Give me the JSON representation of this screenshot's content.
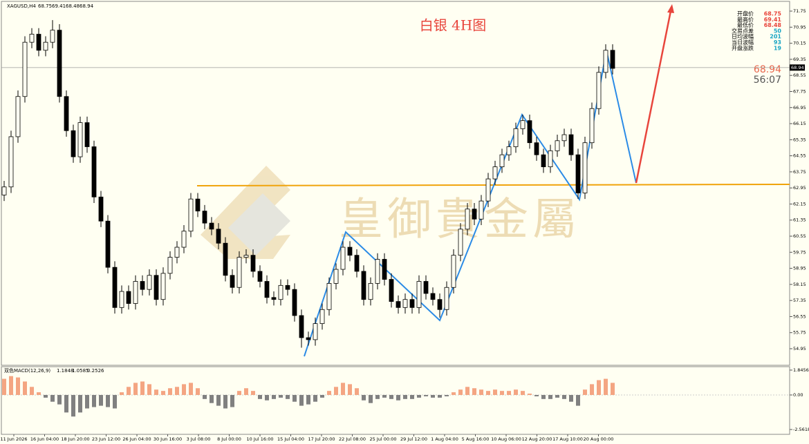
{
  "chart_data": {
    "type": "candlestick",
    "symbol": "XAGUSD,H4",
    "title": "白银 4H图",
    "watermark": "皇御貴金屬",
    "current_price": 68.94,
    "timer": "56:07",
    "info": [
      {
        "label": "开盘价",
        "value": 68.75
      },
      {
        "label": "最高价",
        "value": 69.41
      },
      {
        "label": "最低价",
        "value": 68.48
      },
      {
        "label": "交易点差",
        "value": 50
      },
      {
        "label": "日均波幅",
        "value": 201
      },
      {
        "label": "当日波幅",
        "value": 93
      },
      {
        "label": "开盘涨跌",
        "value": 19
      }
    ],
    "ylim": [
      54.16,
      72.13
    ],
    "yticks": [
      71.75,
      70.95,
      70.15,
      69.35,
      68.55,
      67.75,
      66.95,
      66.15,
      65.35,
      64.55,
      63.75,
      62.95,
      62.15,
      61.35,
      60.55,
      59.75,
      58.95,
      58.15,
      57.35,
      56.55,
      55.75,
      54.95
    ],
    "x_labels": [
      "11 Jun 2026",
      "16 Jun 04:00",
      "18 Jun 20:00",
      "23 Jun 12:00",
      "26 Jun 04:00",
      "30 Jun 16:00",
      "3 Jul 08:00",
      "8 Jul 00:00",
      "10 Jul 16:00",
      "15 Jul 04:00",
      "17 Jul 20:00",
      "22 Jul 08:00",
      "25 Jul 00:00",
      "29 Jul 12:00",
      "1 Aug 04:00",
      "5 Aug 16:00",
      "10 Aug 06:00",
      "12 Aug 20:00",
      "17 Aug 10:00",
      "20 Aug 00:00"
    ],
    "open": [
      62.6,
      63.0,
      65.5,
      67.5,
      70.2,
      70.6,
      69.8,
      70.2,
      70.8,
      67.5,
      65.8,
      64.5,
      66.2,
      65.0,
      62.5,
      61.3,
      59.0,
      57.0,
      57.8,
      57.2,
      58.3,
      57.9,
      58.6,
      57.4,
      58.7,
      59.5,
      60.0,
      60.8,
      62.4,
      61.8,
      61.2,
      60.9,
      60.2,
      58.6,
      58.0,
      59.5,
      59.6,
      58.8,
      58.3,
      57.5,
      57.4,
      58.1,
      57.9,
      56.6,
      55.5,
      55.4,
      56.2,
      56.9,
      58.2,
      58.9,
      60.0,
      59.6,
      58.8,
      57.4,
      58.2,
      59.4,
      58.4,
      57.3,
      57.0,
      57.4,
      57.0,
      58.3,
      57.7,
      57.4,
      56.9,
      58.0,
      59.6,
      60.9,
      61.9,
      61.4,
      62.3,
      63.4,
      64.0,
      64.6,
      65.0,
      65.9,
      66.3,
      65.2,
      64.6,
      64.0,
      64.8,
      65.3,
      65.6,
      64.6,
      62.7,
      65.2,
      66.9,
      68.7,
      69.8
    ],
    "high": [
      63.3,
      65.8,
      67.8,
      70.5,
      70.9,
      70.9,
      70.5,
      71.3,
      71.1,
      67.8,
      66.1,
      66.5,
      66.5,
      65.3,
      62.8,
      61.6,
      59.3,
      58.1,
      58.1,
      58.6,
      58.6,
      58.9,
      58.9,
      59.0,
      59.8,
      60.3,
      61.1,
      62.7,
      62.7,
      62.1,
      61.5,
      61.2,
      60.5,
      58.9,
      59.8,
      59.9,
      59.9,
      59.1,
      58.6,
      57.8,
      58.4,
      58.4,
      58.2,
      56.9,
      55.8,
      56.5,
      57.2,
      58.5,
      59.2,
      60.3,
      60.3,
      59.9,
      59.1,
      58.5,
      59.7,
      59.7,
      58.7,
      57.6,
      57.7,
      57.7,
      58.6,
      58.6,
      58.0,
      57.7,
      58.3,
      59.9,
      61.2,
      62.2,
      62.2,
      62.6,
      63.7,
      64.3,
      64.9,
      65.3,
      66.2,
      66.6,
      66.6,
      65.5,
      64.9,
      65.1,
      65.6,
      65.9,
      65.9,
      64.9,
      65.5,
      67.2,
      69.0,
      70.1,
      70.1
    ],
    "low": [
      62.3,
      62.7,
      65.2,
      67.2,
      69.9,
      69.5,
      69.5,
      69.9,
      67.2,
      65.5,
      64.2,
      64.2,
      64.7,
      62.2,
      61.0,
      58.7,
      56.7,
      56.7,
      56.9,
      56.9,
      57.6,
      57.6,
      57.1,
      57.1,
      58.4,
      59.2,
      59.7,
      60.5,
      61.5,
      60.9,
      60.6,
      59.9,
      58.3,
      57.7,
      57.7,
      59.2,
      58.5,
      58.0,
      57.2,
      57.1,
      57.1,
      57.6,
      56.3,
      55.0,
      55.1,
      55.1,
      55.9,
      56.6,
      57.9,
      58.6,
      59.3,
      58.5,
      57.1,
      57.1,
      57.9,
      58.1,
      57.0,
      56.7,
      56.7,
      56.7,
      56.7,
      57.4,
      57.1,
      56.5,
      56.6,
      57.7,
      59.3,
      60.6,
      61.1,
      61.1,
      62.0,
      63.1,
      63.7,
      64.3,
      64.7,
      65.6,
      64.9,
      64.3,
      63.7,
      63.7,
      64.5,
      65.0,
      64.3,
      62.4,
      62.4,
      64.9,
      66.6,
      68.4,
      68.6
    ],
    "close": [
      63.0,
      65.5,
      67.5,
      70.2,
      70.6,
      69.8,
      70.2,
      70.8,
      67.5,
      65.8,
      64.5,
      66.2,
      65.0,
      62.5,
      61.3,
      59.0,
      57.0,
      57.8,
      57.2,
      58.3,
      57.9,
      58.6,
      57.4,
      58.7,
      59.5,
      60.0,
      60.8,
      62.4,
      61.8,
      61.2,
      60.9,
      60.2,
      58.6,
      58.0,
      59.5,
      59.6,
      58.8,
      58.3,
      57.5,
      57.4,
      58.1,
      57.9,
      56.6,
      55.5,
      55.4,
      56.2,
      56.9,
      58.2,
      58.9,
      60.0,
      59.6,
      58.8,
      57.4,
      58.2,
      59.4,
      58.4,
      57.3,
      57.0,
      57.4,
      57.0,
      58.3,
      57.7,
      57.4,
      56.9,
      58.0,
      59.6,
      60.9,
      61.9,
      61.4,
      62.3,
      63.4,
      64.0,
      64.6,
      65.0,
      65.9,
      66.3,
      65.2,
      64.6,
      64.0,
      64.8,
      65.3,
      65.6,
      64.6,
      62.7,
      65.2,
      66.9,
      68.7,
      69.8,
      68.9
    ],
    "macd": {
      "label": "双色MACD(12,26,9)",
      "values_printed": [
        1.1848,
        1.0585,
        0.2526
      ],
      "ylim": [
        -2.87,
        2.1
      ],
      "yticks": [
        1.8456,
        {
          "value": 0,
          "label": "0.00"
        },
        -2.5618
      ],
      "histogram": [
        1.2,
        1.4,
        1.3,
        1.0,
        0.6,
        0.2,
        -0.2,
        -0.5,
        -0.7,
        -1.3,
        -1.6,
        -1.3,
        -1.0,
        -0.9,
        -0.8,
        -0.9,
        -1.0,
        0.2,
        0.6,
        0.9,
        1.0,
        0.8,
        0.4,
        0.3,
        0.5,
        0.6,
        0.8,
        0.9,
        0.5,
        -0.3,
        -0.6,
        -0.8,
        -1.0,
        -0.9,
        0.3,
        0.5,
        0.3,
        -0.3,
        -0.4,
        -0.3,
        -0.2,
        -0.3,
        -0.5,
        -0.8,
        -0.7,
        -0.5,
        -0.2,
        0.3,
        0.6,
        0.9,
        0.8,
        0.5,
        -0.4,
        -0.6,
        -0.3,
        -0.2,
        -0.3,
        -0.4,
        -0.3,
        -0.3,
        -0.2,
        -0.1,
        -0.2,
        -0.2,
        -0.1,
        0.2,
        0.4,
        0.6,
        0.5,
        0.4,
        0.3,
        0.4,
        0.3,
        0.3,
        0.4,
        0.3,
        0.1,
        -0.1,
        -0.3,
        -0.3,
        -0.2,
        -0.3,
        -0.5,
        -0.8,
        0.4,
        0.8,
        1.1,
        1.2,
        0.9
      ],
      "up_color": "#f4a582",
      "down_color": "#808080"
    }
  }
}
